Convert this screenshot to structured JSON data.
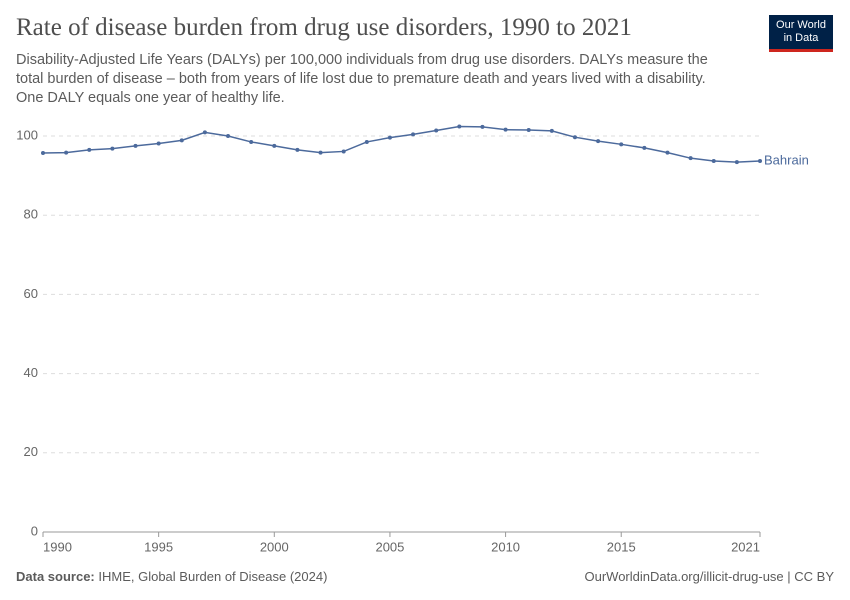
{
  "chart_data": {
    "type": "line",
    "title": "Rate of disease burden from drug use disorders, 1990 to 2021",
    "subtitle": "Disability-Adjusted Life Years (DALYs) per 100,000 individuals from drug use disorders. DALYs measure the total burden of disease – both from years of life lost due to premature death and years lived with a disability. One DALY equals one year of healthy life.",
    "x": [
      1990,
      1991,
      1992,
      1993,
      1994,
      1995,
      1996,
      1997,
      1998,
      1999,
      2000,
      2001,
      2002,
      2003,
      2004,
      2005,
      2006,
      2007,
      2008,
      2009,
      2010,
      2011,
      2012,
      2013,
      2014,
      2015,
      2016,
      2017,
      2018,
      2019,
      2020,
      2021
    ],
    "series": [
      {
        "name": "Bahrain",
        "color": "#4c6a9c",
        "values": [
          95.7,
          95.8,
          96.5,
          96.8,
          97.5,
          98.1,
          98.9,
          100.9,
          100,
          98.5,
          97.5,
          96.5,
          95.8,
          96.1,
          98.5,
          99.6,
          100.4,
          101.4,
          102.4,
          102.3,
          101.6,
          101.5,
          101.3,
          99.7,
          98.7,
          97.9,
          97,
          95.8,
          94.4,
          93.7,
          93.4,
          93.7
        ]
      }
    ],
    "xlim": [
      1990,
      2021
    ],
    "xticks": [
      1990,
      1995,
      2000,
      2005,
      2010,
      2015,
      2021
    ],
    "ylim": [
      0,
      100
    ],
    "yticks": [
      0,
      20,
      40,
      60,
      80,
      100
    ],
    "grid": true
  },
  "logo": {
    "line1": "Our World",
    "line2": "in Data"
  },
  "footer": {
    "source_label": "Data source:",
    "source": "IHME, Global Burden of Disease (2024)",
    "url": "OurWorldinData.org/illicit-drug-use | CC BY"
  }
}
